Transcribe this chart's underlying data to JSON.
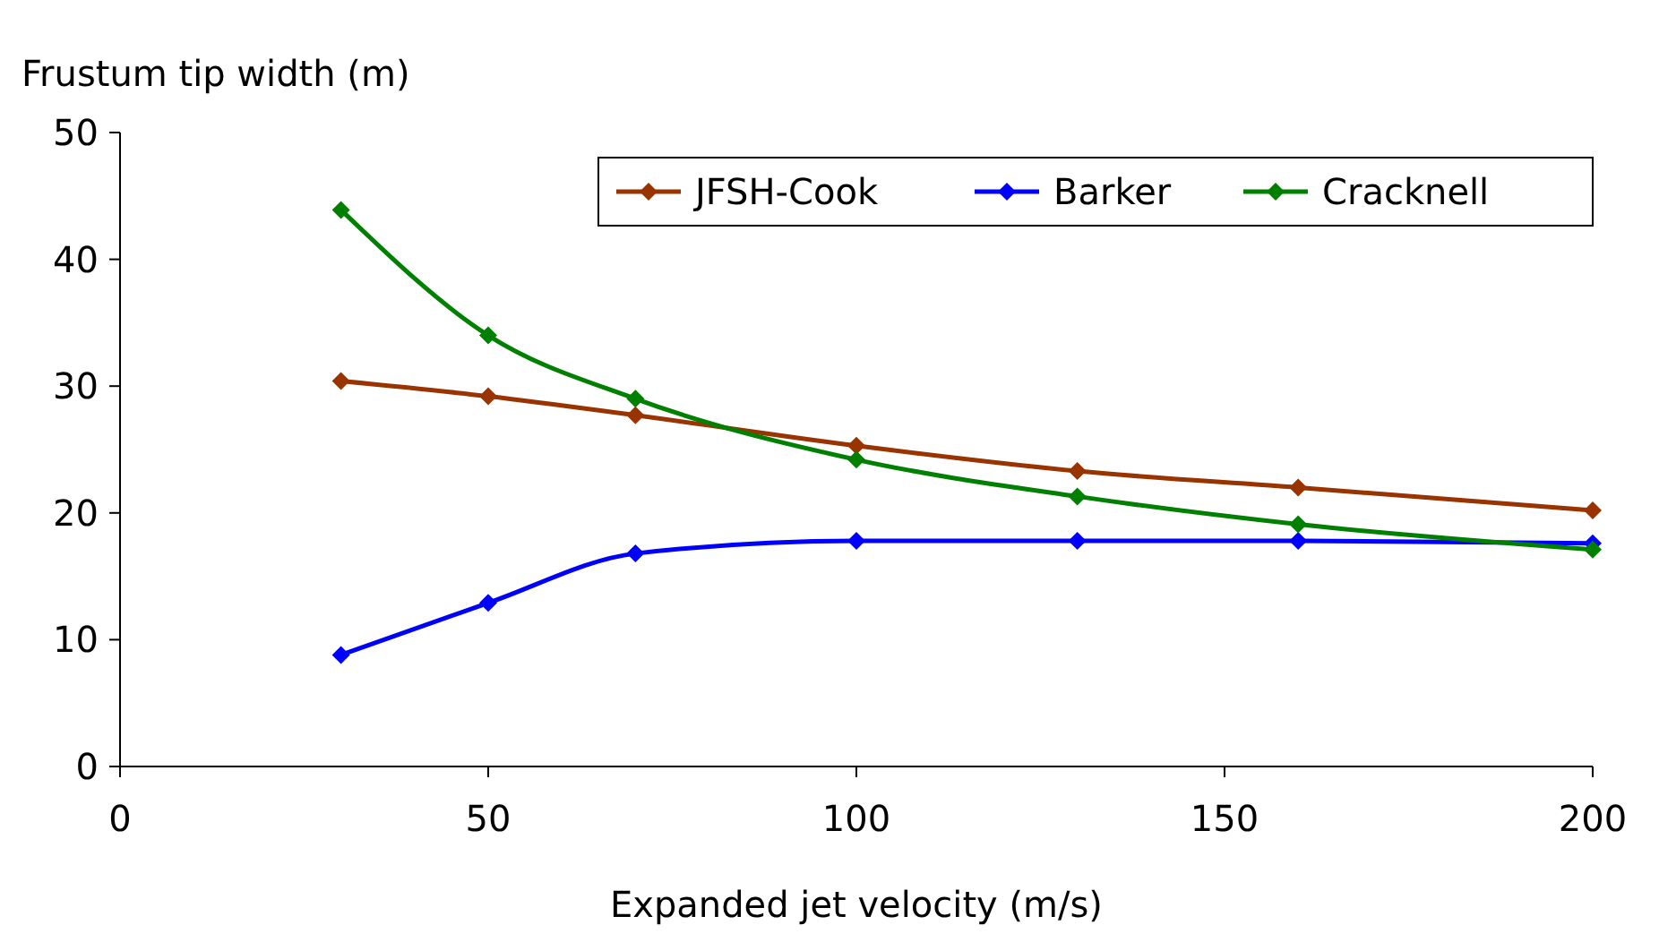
{
  "chart_data": {
    "type": "line",
    "xlabel": "Expanded jet velocity (m/s)",
    "ylabel": "Frustum tip width (m)",
    "x": [
      30,
      50,
      70,
      100,
      130,
      160,
      200
    ],
    "series": [
      {
        "name": "JFSH-Cook",
        "color": "#993300",
        "values": [
          30.4,
          29.2,
          27.7,
          25.3,
          23.3,
          22.0,
          20.2
        ]
      },
      {
        "name": "Barker",
        "color": "#0000ff",
        "values": [
          8.8,
          12.9,
          16.8,
          17.8,
          17.8,
          17.8,
          17.6
        ]
      },
      {
        "name": "Cracknell",
        "color": "#008000",
        "values": [
          43.9,
          34.0,
          29.0,
          24.2,
          21.3,
          19.1,
          17.1
        ]
      }
    ],
    "xlim": [
      0,
      200
    ],
    "xticks": [
      0,
      50,
      100,
      150,
      200
    ],
    "ylim": [
      0,
      50
    ],
    "yticks": [
      0,
      10,
      20,
      30,
      40,
      50
    ],
    "grid": false,
    "legend": "top right",
    "marker": "diamond",
    "line_style": "solid"
  }
}
